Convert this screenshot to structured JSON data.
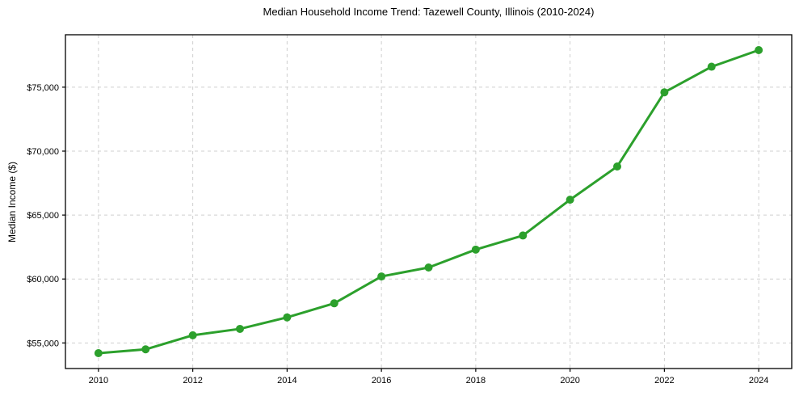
{
  "chart_data": {
    "type": "line",
    "title": "Median Household Income Trend: Tazewell County, Illinois (2010-2024)",
    "xlabel": "",
    "ylabel": "Median Income ($)",
    "x": [
      2010,
      2011,
      2012,
      2013,
      2014,
      2015,
      2016,
      2017,
      2018,
      2019,
      2020,
      2021,
      2022,
      2023,
      2024
    ],
    "series": [
      {
        "name": "Median Household Income",
        "values": [
          54200,
          54500,
          55600,
          56100,
          57000,
          58100,
          60200,
          60900,
          62300,
          63400,
          66200,
          68800,
          74600,
          76600,
          77900
        ]
      }
    ],
    "xticks": [
      2010,
      2012,
      2014,
      2016,
      2018,
      2020,
      2022,
      2024
    ],
    "yticks": [
      55000,
      60000,
      65000,
      70000,
      75000
    ],
    "ytick_labels": [
      "$55,000",
      "$60,000",
      "$65,000",
      "$70,000",
      "$75,000"
    ],
    "xlim": [
      2009.3,
      2024.7
    ],
    "ylim": [
      53000,
      79100
    ],
    "grid": true,
    "legend_position": "none",
    "line_color": "#2ca02c",
    "marker": "circle",
    "marker_size": 10,
    "grid_color": "#cfcfcf",
    "axis_color": "#000000",
    "background": "#ffffff"
  }
}
